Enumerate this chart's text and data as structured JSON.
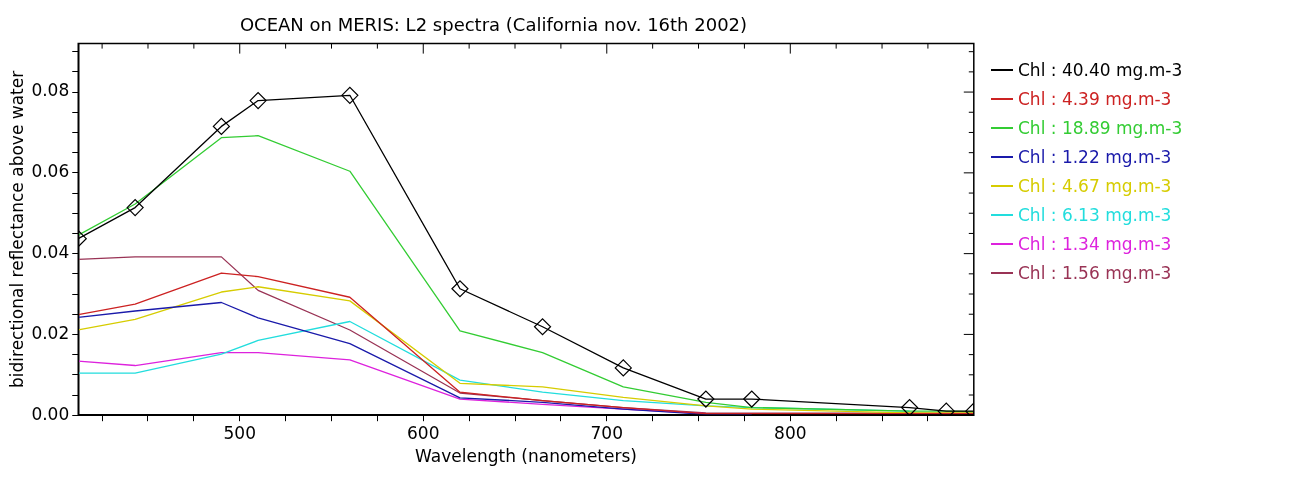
{
  "chart_data": {
    "type": "line",
    "title": "OCEAN on MERIS: L2 spectra (California nov. 16th 2002)",
    "xlabel": "Wavelength (nanometers)",
    "ylabel": "bidirectional reflectance above water",
    "x": [
      412,
      443,
      490,
      510,
      560,
      620,
      665,
      709,
      754,
      779,
      865,
      885,
      900
    ],
    "xlim": [
      412,
      900
    ],
    "ylim": [
      0,
      0.092
    ],
    "xticks": [
      {
        "value": 425,
        "label": null
      },
      {
        "value": 450,
        "label": null
      },
      {
        "value": 475,
        "label": null
      },
      500,
      {
        "value": 525,
        "label": null
      },
      {
        "value": 550,
        "label": null
      },
      {
        "value": 575,
        "label": null
      },
      600,
      {
        "value": 625,
        "label": null
      },
      {
        "value": 650,
        "label": null
      },
      {
        "value": 675,
        "label": null
      },
      700,
      {
        "value": 725,
        "label": null
      },
      {
        "value": 750,
        "label": null
      },
      {
        "value": 775,
        "label": null
      },
      800,
      {
        "value": 825,
        "label": null
      },
      {
        "value": 850,
        "label": null
      },
      {
        "value": 875,
        "label": null
      }
    ],
    "yticks": [
      {
        "value": 0,
        "label": "0.00"
      },
      {
        "value": 0.005,
        "label": null
      },
      {
        "value": 0.01,
        "label": null
      },
      {
        "value": 0.015,
        "label": null
      },
      {
        "value": 0.02,
        "label": "0.02"
      },
      {
        "value": 0.025,
        "label": null
      },
      {
        "value": 0.03,
        "label": null
      },
      {
        "value": 0.035,
        "label": null
      },
      {
        "value": 0.04,
        "label": "0.04"
      },
      {
        "value": 0.045,
        "label": null
      },
      {
        "value": 0.05,
        "label": null
      },
      {
        "value": 0.055,
        "label": null
      },
      {
        "value": 0.06,
        "label": "0.06"
      },
      {
        "value": 0.065,
        "label": null
      },
      {
        "value": 0.07,
        "label": null
      },
      {
        "value": 0.075,
        "label": null
      },
      {
        "value": 0.08,
        "label": "0.08"
      },
      {
        "value": 0.085,
        "label": null
      },
      {
        "value": 0.09,
        "label": null
      }
    ],
    "grid": false,
    "legend": "right",
    "line_style": "solid",
    "series": [
      {
        "name": "Chl : 40.40 mg.m-3",
        "color": "#000000",
        "marker": "diamond",
        "values": [
          0.0437,
          0.0514,
          0.0715,
          0.0779,
          0.0792,
          0.0313,
          0.0219,
          0.0117,
          0.004,
          0.004,
          0.0019,
          0.001,
          0.001
        ]
      },
      {
        "name": "Chl : 4.39 mg.m-3",
        "color": "#cc2222",
        "values": [
          0.0249,
          0.0275,
          0.0352,
          0.0343,
          0.0292,
          0.0057,
          0.0036,
          0.0019,
          0.0004,
          0.0004,
          0.0004,
          0.0004,
          0.0004
        ]
      },
      {
        "name": "Chl : 18.89 mg.m-3",
        "color": "#33cc33",
        "values": [
          0.0446,
          0.0523,
          0.0687,
          0.0692,
          0.0604,
          0.0209,
          0.0155,
          0.007,
          0.0032,
          0.0019,
          0.001,
          0.001,
          0.0009
        ]
      },
      {
        "name": "Chl : 1.22 mg.m-3",
        "color": "#1a1aaa",
        "values": [
          0.0242,
          0.0258,
          0.0279,
          0.0241,
          0.0177,
          0.0043,
          0.0032,
          0.0015,
          0.0002,
          0.0002,
          null,
          null,
          null
        ]
      },
      {
        "name": "Chl : 4.67 mg.m-3",
        "color": "#d6cc00",
        "values": [
          0.0211,
          0.0237,
          0.0305,
          0.0318,
          0.0283,
          0.0079,
          0.007,
          0.0044,
          0.0023,
          0.0015,
          0.0006,
          0.0006,
          0.0006
        ]
      },
      {
        "name": "Chl : 6.13 mg.m-3",
        "color": "#22dddd",
        "values": [
          0.0104,
          0.0104,
          0.0151,
          0.0185,
          0.0232,
          0.0087,
          0.0057,
          0.0036,
          0.0023,
          0.0019,
          0.001,
          null,
          null
        ]
      },
      {
        "name": "Chl : 1.34 mg.m-3",
        "color": "#dd22dd",
        "values": [
          0.0134,
          0.0123,
          0.0155,
          0.0155,
          0.0137,
          0.004,
          0.0027,
          0.0015,
          0.0004,
          null,
          null,
          null,
          null
        ]
      },
      {
        "name": "Chl : 1.56 mg.m-3",
        "color": "#993355",
        "values": [
          0.0386,
          0.0392,
          0.0392,
          0.0309,
          0.0211,
          0.0055,
          0.0036,
          0.0019,
          0.0006,
          0.0005,
          0.0005,
          0.0005,
          0.0005
        ]
      }
    ]
  }
}
